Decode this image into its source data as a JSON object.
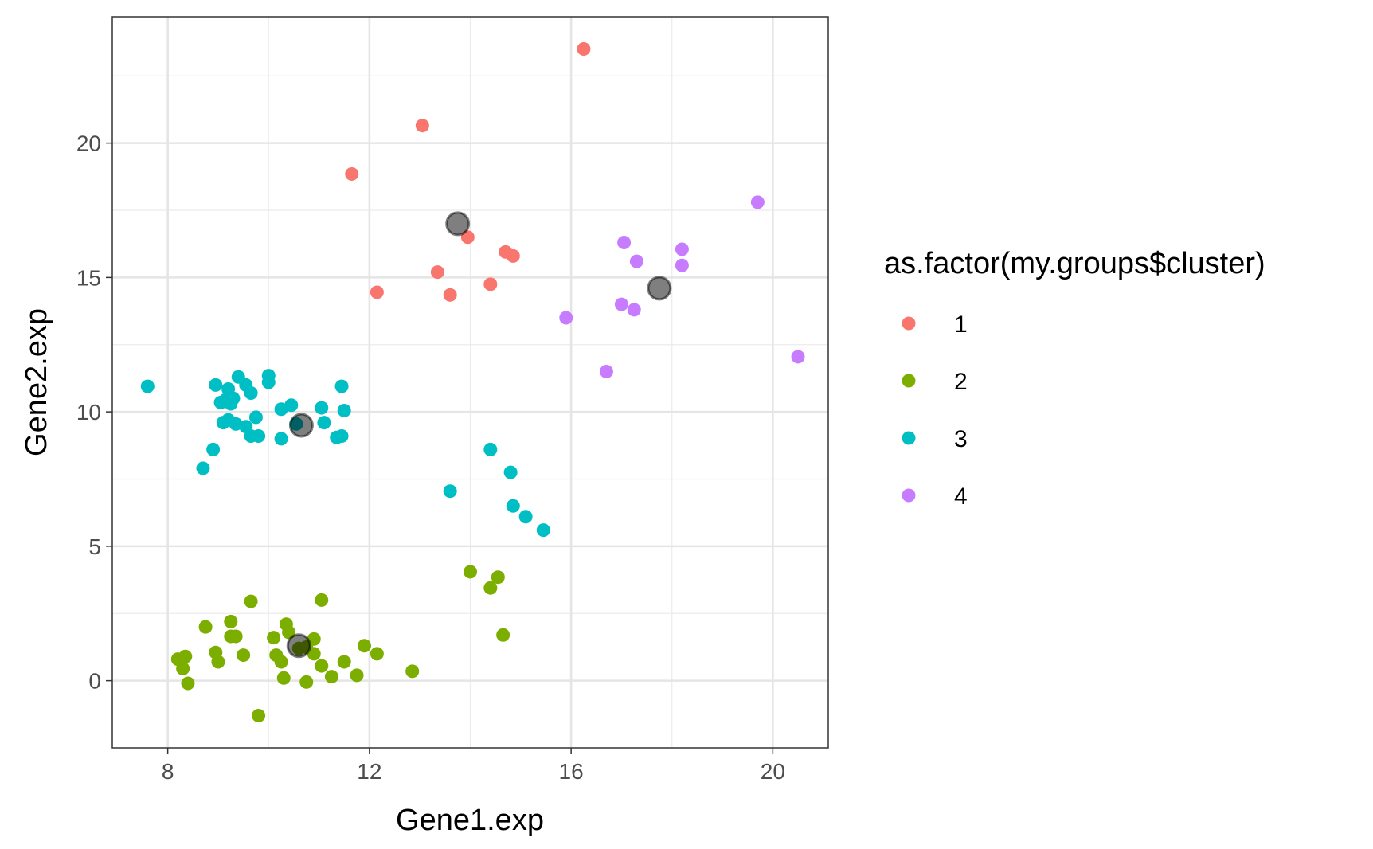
{
  "chart_data": {
    "type": "scatter",
    "xlabel": "Gene1.exp",
    "ylabel": "Gene2.exp",
    "xlim": [
      6.9,
      21.1
    ],
    "ylim": [
      -2.5,
      24.7
    ],
    "x_ticks": [
      8,
      12,
      16,
      20
    ],
    "y_ticks": [
      0,
      5,
      10,
      15,
      20
    ],
    "x_tick_labels": [
      "8",
      "12",
      "16",
      "20"
    ],
    "y_tick_labels": [
      "0",
      "5",
      "10",
      "15",
      "20"
    ],
    "grid": true,
    "legend": {
      "title": "as.factor(my.groups$cluster)",
      "position": "right"
    },
    "series": [
      {
        "name": "1",
        "color": "#F8766D",
        "points": [
          [
            16.25,
            23.5
          ],
          [
            13.05,
            20.65
          ],
          [
            11.65,
            18.85
          ],
          [
            13.95,
            16.5
          ],
          [
            14.7,
            15.95
          ],
          [
            14.85,
            15.8
          ],
          [
            13.35,
            15.2
          ],
          [
            14.4,
            14.75
          ],
          [
            13.6,
            14.35
          ],
          [
            12.15,
            14.45
          ]
        ]
      },
      {
        "name": "2",
        "color": "#7CAE00",
        "points": [
          [
            14.0,
            4.05
          ],
          [
            14.55,
            3.85
          ],
          [
            14.4,
            3.45
          ],
          [
            14.65,
            1.7
          ],
          [
            9.65,
            2.95
          ],
          [
            11.05,
            3.0
          ],
          [
            9.25,
            2.2
          ],
          [
            8.75,
            2.0
          ],
          [
            10.35,
            2.1
          ],
          [
            10.4,
            1.8
          ],
          [
            9.25,
            1.65
          ],
          [
            9.35,
            1.65
          ],
          [
            10.1,
            1.6
          ],
          [
            10.9,
            1.55
          ],
          [
            10.6,
            1.2
          ],
          [
            10.75,
            1.25
          ],
          [
            11.9,
            1.3
          ],
          [
            8.95,
            1.05
          ],
          [
            9.5,
            0.95
          ],
          [
            10.15,
            0.95
          ],
          [
            10.9,
            1.0
          ],
          [
            12.15,
            1.0
          ],
          [
            8.2,
            0.8
          ],
          [
            8.35,
            0.9
          ],
          [
            8.3,
            0.45
          ],
          [
            9.0,
            0.7
          ],
          [
            10.25,
            0.7
          ],
          [
            11.5,
            0.7
          ],
          [
            11.05,
            0.55
          ],
          [
            12.85,
            0.35
          ],
          [
            10.3,
            0.1
          ],
          [
            11.25,
            0.15
          ],
          [
            11.75,
            0.2
          ],
          [
            8.4,
            -0.1
          ],
          [
            10.75,
            -0.05
          ],
          [
            9.8,
            -1.3
          ]
        ]
      },
      {
        "name": "3",
        "color": "#00BFC4",
        "points": [
          [
            7.6,
            10.95
          ],
          [
            8.95,
            11.0
          ],
          [
            9.2,
            10.85
          ],
          [
            9.4,
            11.3
          ],
          [
            9.55,
            11.0
          ],
          [
            10.0,
            11.35
          ],
          [
            10.0,
            11.1
          ],
          [
            11.45,
            10.95
          ],
          [
            9.65,
            10.7
          ],
          [
            9.15,
            10.45
          ],
          [
            9.3,
            10.5
          ],
          [
            9.05,
            10.35
          ],
          [
            9.25,
            10.3
          ],
          [
            10.45,
            10.25
          ],
          [
            10.25,
            10.1
          ],
          [
            11.05,
            10.15
          ],
          [
            11.5,
            10.05
          ],
          [
            9.75,
            9.8
          ],
          [
            9.1,
            9.6
          ],
          [
            9.2,
            9.7
          ],
          [
            9.35,
            9.55
          ],
          [
            9.55,
            9.45
          ],
          [
            10.55,
            9.55
          ],
          [
            11.1,
            9.6
          ],
          [
            9.65,
            9.1
          ],
          [
            9.8,
            9.1
          ],
          [
            10.25,
            9.0
          ],
          [
            11.35,
            9.05
          ],
          [
            11.45,
            9.1
          ],
          [
            8.9,
            8.6
          ],
          [
            8.7,
            7.9
          ],
          [
            14.4,
            8.6
          ],
          [
            14.8,
            7.75
          ],
          [
            13.6,
            7.05
          ],
          [
            14.85,
            6.5
          ],
          [
            15.1,
            6.1
          ],
          [
            15.45,
            5.6
          ]
        ]
      },
      {
        "name": "4",
        "color": "#C77CFF",
        "points": [
          [
            19.7,
            17.8
          ],
          [
            17.05,
            16.3
          ],
          [
            18.2,
            16.05
          ],
          [
            17.3,
            15.6
          ],
          [
            18.2,
            15.45
          ],
          [
            17.0,
            14.0
          ],
          [
            17.25,
            13.8
          ],
          [
            15.9,
            13.5
          ],
          [
            20.5,
            12.05
          ],
          [
            16.7,
            11.5
          ]
        ]
      }
    ],
    "centers": {
      "color": "#000000",
      "opacity": 0.5,
      "points": [
        [
          13.75,
          17.0
        ],
        [
          17.75,
          14.6
        ],
        [
          10.65,
          9.5
        ],
        [
          10.6,
          1.3
        ]
      ]
    }
  }
}
